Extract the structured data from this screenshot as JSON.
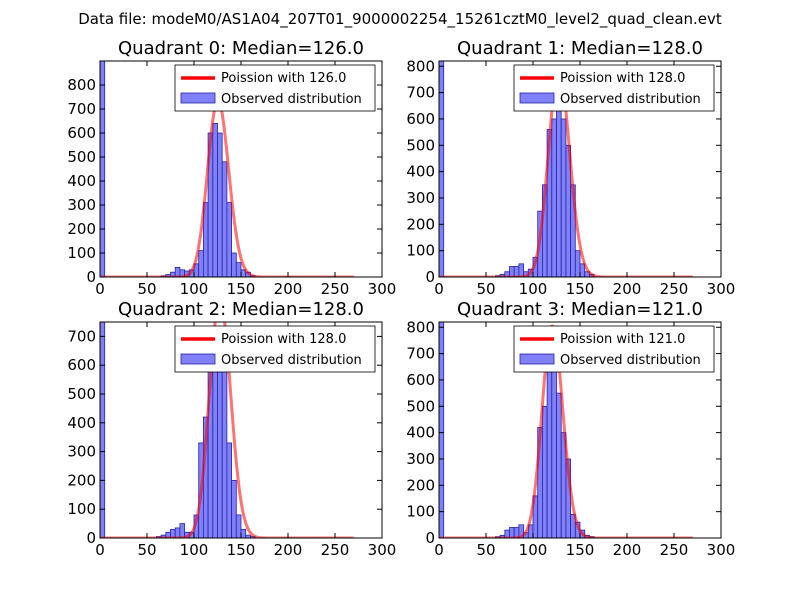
{
  "suptitle": "Data file: modeM0/AS1A04_207T01_9000002254_15261cztM0_level2_quad_clean.evt",
  "colors": {
    "hist_fill": "#8080f8",
    "hist_edge": "#2424a8",
    "poisson": "#ff0000"
  },
  "chart_data": [
    {
      "type": "bar",
      "title": "Quadrant 0: Median=126.0",
      "median": 126.0,
      "xlim": [
        0,
        300
      ],
      "ylim": [
        0,
        900
      ],
      "xticks": [
        "0",
        "50",
        "100",
        "150",
        "200",
        "250",
        "300"
      ],
      "yticks": [
        "0",
        "100",
        "200",
        "300",
        "400",
        "500",
        "600",
        "700",
        "800"
      ],
      "legend": {
        "poisson": "Poission with 126.0",
        "observed": "Observed distribution"
      },
      "bin_width": 5,
      "bins": [
        [
          0,
          900
        ],
        [
          65,
          5
        ],
        [
          70,
          10
        ],
        [
          75,
          20
        ],
        [
          80,
          40
        ],
        [
          85,
          30
        ],
        [
          90,
          25
        ],
        [
          95,
          30
        ],
        [
          100,
          55
        ],
        [
          105,
          110
        ],
        [
          110,
          310
        ],
        [
          115,
          600
        ],
        [
          120,
          640
        ],
        [
          125,
          600
        ],
        [
          130,
          480
        ],
        [
          135,
          310
        ],
        [
          140,
          100
        ],
        [
          145,
          60
        ],
        [
          150,
          30
        ],
        [
          155,
          20
        ],
        [
          160,
          5
        ]
      ]
    },
    {
      "type": "bar",
      "title": "Quadrant 1: Median=128.0",
      "median": 128.0,
      "xlim": [
        0,
        300
      ],
      "ylim": [
        0,
        820
      ],
      "xticks": [
        "0",
        "50",
        "100",
        "150",
        "200",
        "250",
        "300"
      ],
      "yticks": [
        "0",
        "100",
        "200",
        "300",
        "400",
        "500",
        "600",
        "700",
        "800"
      ],
      "legend": {
        "poisson": "Poission with 128.0",
        "observed": "Observed distribution"
      },
      "bin_width": 5,
      "bins": [
        [
          0,
          820
        ],
        [
          60,
          5
        ],
        [
          65,
          10
        ],
        [
          70,
          20
        ],
        [
          75,
          40
        ],
        [
          80,
          40
        ],
        [
          85,
          50
        ],
        [
          90,
          20
        ],
        [
          95,
          30
        ],
        [
          100,
          75
        ],
        [
          105,
          250
        ],
        [
          110,
          350
        ],
        [
          115,
          560
        ],
        [
          120,
          600
        ],
        [
          125,
          680
        ],
        [
          130,
          600
        ],
        [
          135,
          500
        ],
        [
          140,
          350
        ],
        [
          145,
          100
        ],
        [
          150,
          50
        ],
        [
          155,
          20
        ],
        [
          160,
          10
        ]
      ]
    },
    {
      "type": "bar",
      "title": "Quadrant 2: Median=128.0",
      "median": 128.0,
      "xlim": [
        0,
        300
      ],
      "ylim": [
        0,
        750
      ],
      "xticks": [
        "0",
        "50",
        "100",
        "150",
        "200",
        "250",
        "300"
      ],
      "yticks": [
        "0",
        "100",
        "200",
        "300",
        "400",
        "500",
        "600",
        "700"
      ],
      "legend": {
        "poisson": "Poission with 128.0",
        "observed": "Observed distribution"
      },
      "bin_width": 5,
      "bins": [
        [
          0,
          750
        ],
        [
          60,
          5
        ],
        [
          65,
          10
        ],
        [
          70,
          20
        ],
        [
          75,
          30
        ],
        [
          80,
          35
        ],
        [
          85,
          50
        ],
        [
          90,
          20
        ],
        [
          95,
          20
        ],
        [
          100,
          80
        ],
        [
          105,
          330
        ],
        [
          110,
          420
        ],
        [
          115,
          650
        ],
        [
          120,
          720
        ],
        [
          125,
          660
        ],
        [
          130,
          600
        ],
        [
          135,
          330
        ],
        [
          140,
          200
        ],
        [
          145,
          80
        ],
        [
          150,
          30
        ],
        [
          155,
          10
        ],
        [
          160,
          5
        ]
      ]
    },
    {
      "type": "bar",
      "title": "Quadrant 3: Median=121.0",
      "median": 121.0,
      "xlim": [
        0,
        300
      ],
      "ylim": [
        0,
        820
      ],
      "xticks": [
        "0",
        "50",
        "100",
        "150",
        "200",
        "250",
        "300"
      ],
      "yticks": [
        "0",
        "100",
        "200",
        "300",
        "400",
        "500",
        "600",
        "700",
        "800"
      ],
      "legend": {
        "poisson": "Poission with 121.0",
        "observed": "Observed distribution"
      },
      "bin_width": 5,
      "bins": [
        [
          0,
          820
        ],
        [
          60,
          5
        ],
        [
          65,
          10
        ],
        [
          70,
          30
        ],
        [
          75,
          40
        ],
        [
          80,
          40
        ],
        [
          85,
          50
        ],
        [
          90,
          20
        ],
        [
          95,
          50
        ],
        [
          100,
          160
        ],
        [
          105,
          420
        ],
        [
          110,
          500
        ],
        [
          115,
          640
        ],
        [
          120,
          700
        ],
        [
          125,
          550
        ],
        [
          130,
          400
        ],
        [
          135,
          300
        ],
        [
          140,
          90
        ],
        [
          145,
          60
        ],
        [
          150,
          30
        ],
        [
          155,
          10
        ],
        [
          160,
          5
        ]
      ]
    }
  ]
}
